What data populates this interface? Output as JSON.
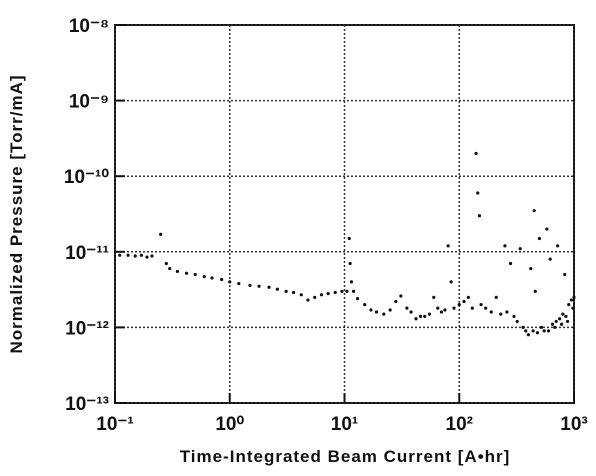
{
  "chart_data": {
    "type": "scatter",
    "xlabel": "Time-Integrated  Beam  Current  [A•hr]",
    "ylabel": "Normalized  Pressure  [Torr/mA]",
    "log_x": true,
    "log_y": true,
    "grid": true,
    "color": "#111111",
    "xlim": [
      0.1,
      1000
    ],
    "ylim": [
      1e-13,
      1e-08
    ],
    "xticks": [
      {
        "value": 0.1,
        "label": "10⁻¹"
      },
      {
        "value": 1,
        "label": "10⁰"
      },
      {
        "value": 10,
        "label": "10¹"
      },
      {
        "value": 100,
        "label": "10²"
      },
      {
        "value": 1000,
        "label": "10³"
      }
    ],
    "yticks": [
      {
        "value": 1e-13,
        "label": "10⁻¹³"
      },
      {
        "value": 1e-12,
        "label": "10⁻¹²"
      },
      {
        "value": 1e-11,
        "label": "10⁻¹¹"
      },
      {
        "value": 1e-10,
        "label": "10⁻¹⁰"
      },
      {
        "value": 1e-09,
        "label": "10⁻⁹"
      },
      {
        "value": 1e-08,
        "label": "10⁻⁸"
      }
    ],
    "x": [
      0.11,
      0.13,
      0.15,
      0.17,
      0.19,
      0.21,
      0.25,
      0.28,
      0.3,
      0.35,
      0.42,
      0.5,
      0.6,
      0.7,
      0.85,
      1,
      1.2,
      1.5,
      1.8,
      2.2,
      2.6,
      3.1,
      3.6,
      4.2,
      4.8,
      5.5,
      6.3,
      7.2,
      8.3,
      9.5,
      10.5,
      11,
      11.2,
      11.5,
      12,
      13,
      15,
      17,
      19,
      22,
      25,
      28,
      31,
      35,
      38,
      42,
      46,
      50,
      55,
      60,
      65,
      70,
      75,
      80,
      85,
      90,
      100,
      110,
      120,
      130,
      140,
      145,
      150,
      155,
      170,
      190,
      210,
      230,
      250,
      260,
      280,
      300,
      320,
      340,
      360,
      380,
      400,
      420,
      440,
      450,
      460,
      480,
      500,
      520,
      550,
      580,
      600,
      620,
      650,
      680,
      700,
      720,
      750,
      780,
      800,
      830,
      850,
      880,
      900,
      950,
      980,
      1000
    ],
    "values": [
      9e-12,
      9e-12,
      8.8e-12,
      9e-12,
      8.5e-12,
      8.8e-12,
      1.7e-11,
      7e-12,
      6e-12,
      5.5e-12,
      5.2e-12,
      5e-12,
      4.7e-12,
      4.5e-12,
      4.3e-12,
      4e-12,
      3.8e-12,
      3.6e-12,
      3.5e-12,
      3.4e-12,
      3.2e-12,
      3e-12,
      2.9e-12,
      2.7e-12,
      2.3e-12,
      2.5e-12,
      2.7e-12,
      2.8e-12,
      2.9e-12,
      3e-12,
      3e-12,
      1.5e-11,
      7e-12,
      4e-12,
      3e-12,
      2.4e-12,
      2e-12,
      1.7e-12,
      1.6e-12,
      1.5e-12,
      1.7e-12,
      2.2e-12,
      2.6e-12,
      1.8e-12,
      1.6e-12,
      1.3e-12,
      1.4e-12,
      1.4e-12,
      1.5e-12,
      2.5e-12,
      1.8e-12,
      1.6e-12,
      1.7e-12,
      1.2e-11,
      4e-12,
      1.8e-12,
      2e-12,
      2.2e-12,
      2.5e-12,
      1.8e-12,
      2e-10,
      6e-11,
      3e-11,
      2e-12,
      1.8e-12,
      1.6e-12,
      2.5e-12,
      1.5e-12,
      1.2e-11,
      1.6e-12,
      7e-12,
      1.4e-12,
      1.2e-12,
      1.1e-11,
      1e-12,
      9e-13,
      8e-13,
      6e-12,
      9e-13,
      3.5e-11,
      3e-12,
      8.5e-13,
      1.5e-11,
      1e-12,
      9e-13,
      2e-11,
      9e-13,
      8e-12,
      1.1e-12,
      1e-12,
      1.2e-12,
      1.2e-11,
      1.3e-12,
      1.1e-12,
      1.5e-12,
      5e-12,
      1.4e-12,
      1.2e-12,
      2e-12,
      2.3e-12,
      1.8e-12,
      2.5e-12
    ]
  }
}
